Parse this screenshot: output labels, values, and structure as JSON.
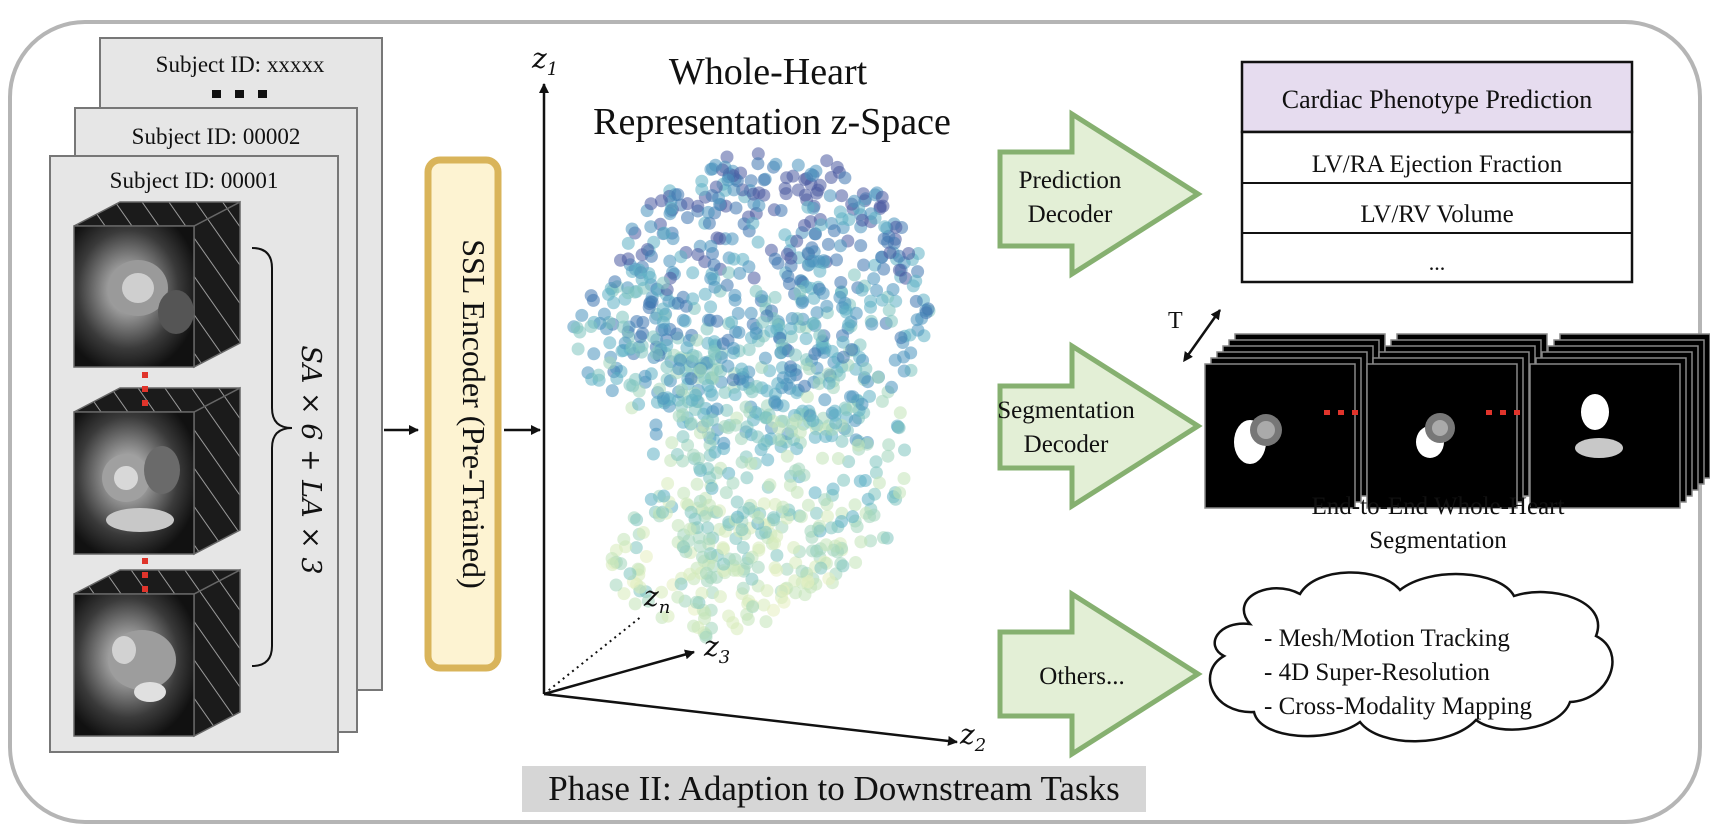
{
  "subjects": {
    "front": "Subject ID: 00001",
    "middle": "Subject ID: 00002",
    "back": "Subject ID: xxxxx"
  },
  "views_formula": "SA × 6 + LA × 3",
  "encoder": {
    "label": "SSL Encoder (Pre-Trained)",
    "fill": "#fdf3d2",
    "border": "#d9b45a"
  },
  "zspace": {
    "title_line1": "Whole-Heart",
    "title_line2": "Representation z-Space",
    "axis_labels": {
      "z1": "z",
      "z1_sub": "1",
      "z2": "z",
      "z2_sub": "2",
      "z3": "z",
      "z3_sub": "3",
      "zn": "z",
      "zn_sub": "n"
    }
  },
  "decoders": [
    {
      "id": "prediction",
      "line1": "Prediction",
      "line2": "Decoder"
    },
    {
      "id": "segmentation",
      "line1": "Segmentation",
      "line2": "Decoder"
    },
    {
      "id": "others",
      "line1": "Others...",
      "line2": ""
    }
  ],
  "arrow_colors": {
    "fill": "#e3efd6",
    "stroke": "#86b070"
  },
  "phenotype_table": {
    "header": "Cardiac Phenotype Prediction",
    "header_fill": "#e6dcef",
    "rows": [
      "LV/RA Ejection Fraction",
      "LV/RV Volume",
      "..."
    ]
  },
  "segmentation": {
    "time_label": "T",
    "caption_line1": "End-to-End Whole-Heart",
    "caption_line2": "Segmentation"
  },
  "others_cloud": [
    "- Mesh/Motion Tracking",
    "- 4D Super-Resolution",
    "- Cross-Modality Mapping"
  ],
  "phase_label": "Phase II: Adaption to Downstream Tasks",
  "accent_red": "#e0342b"
}
